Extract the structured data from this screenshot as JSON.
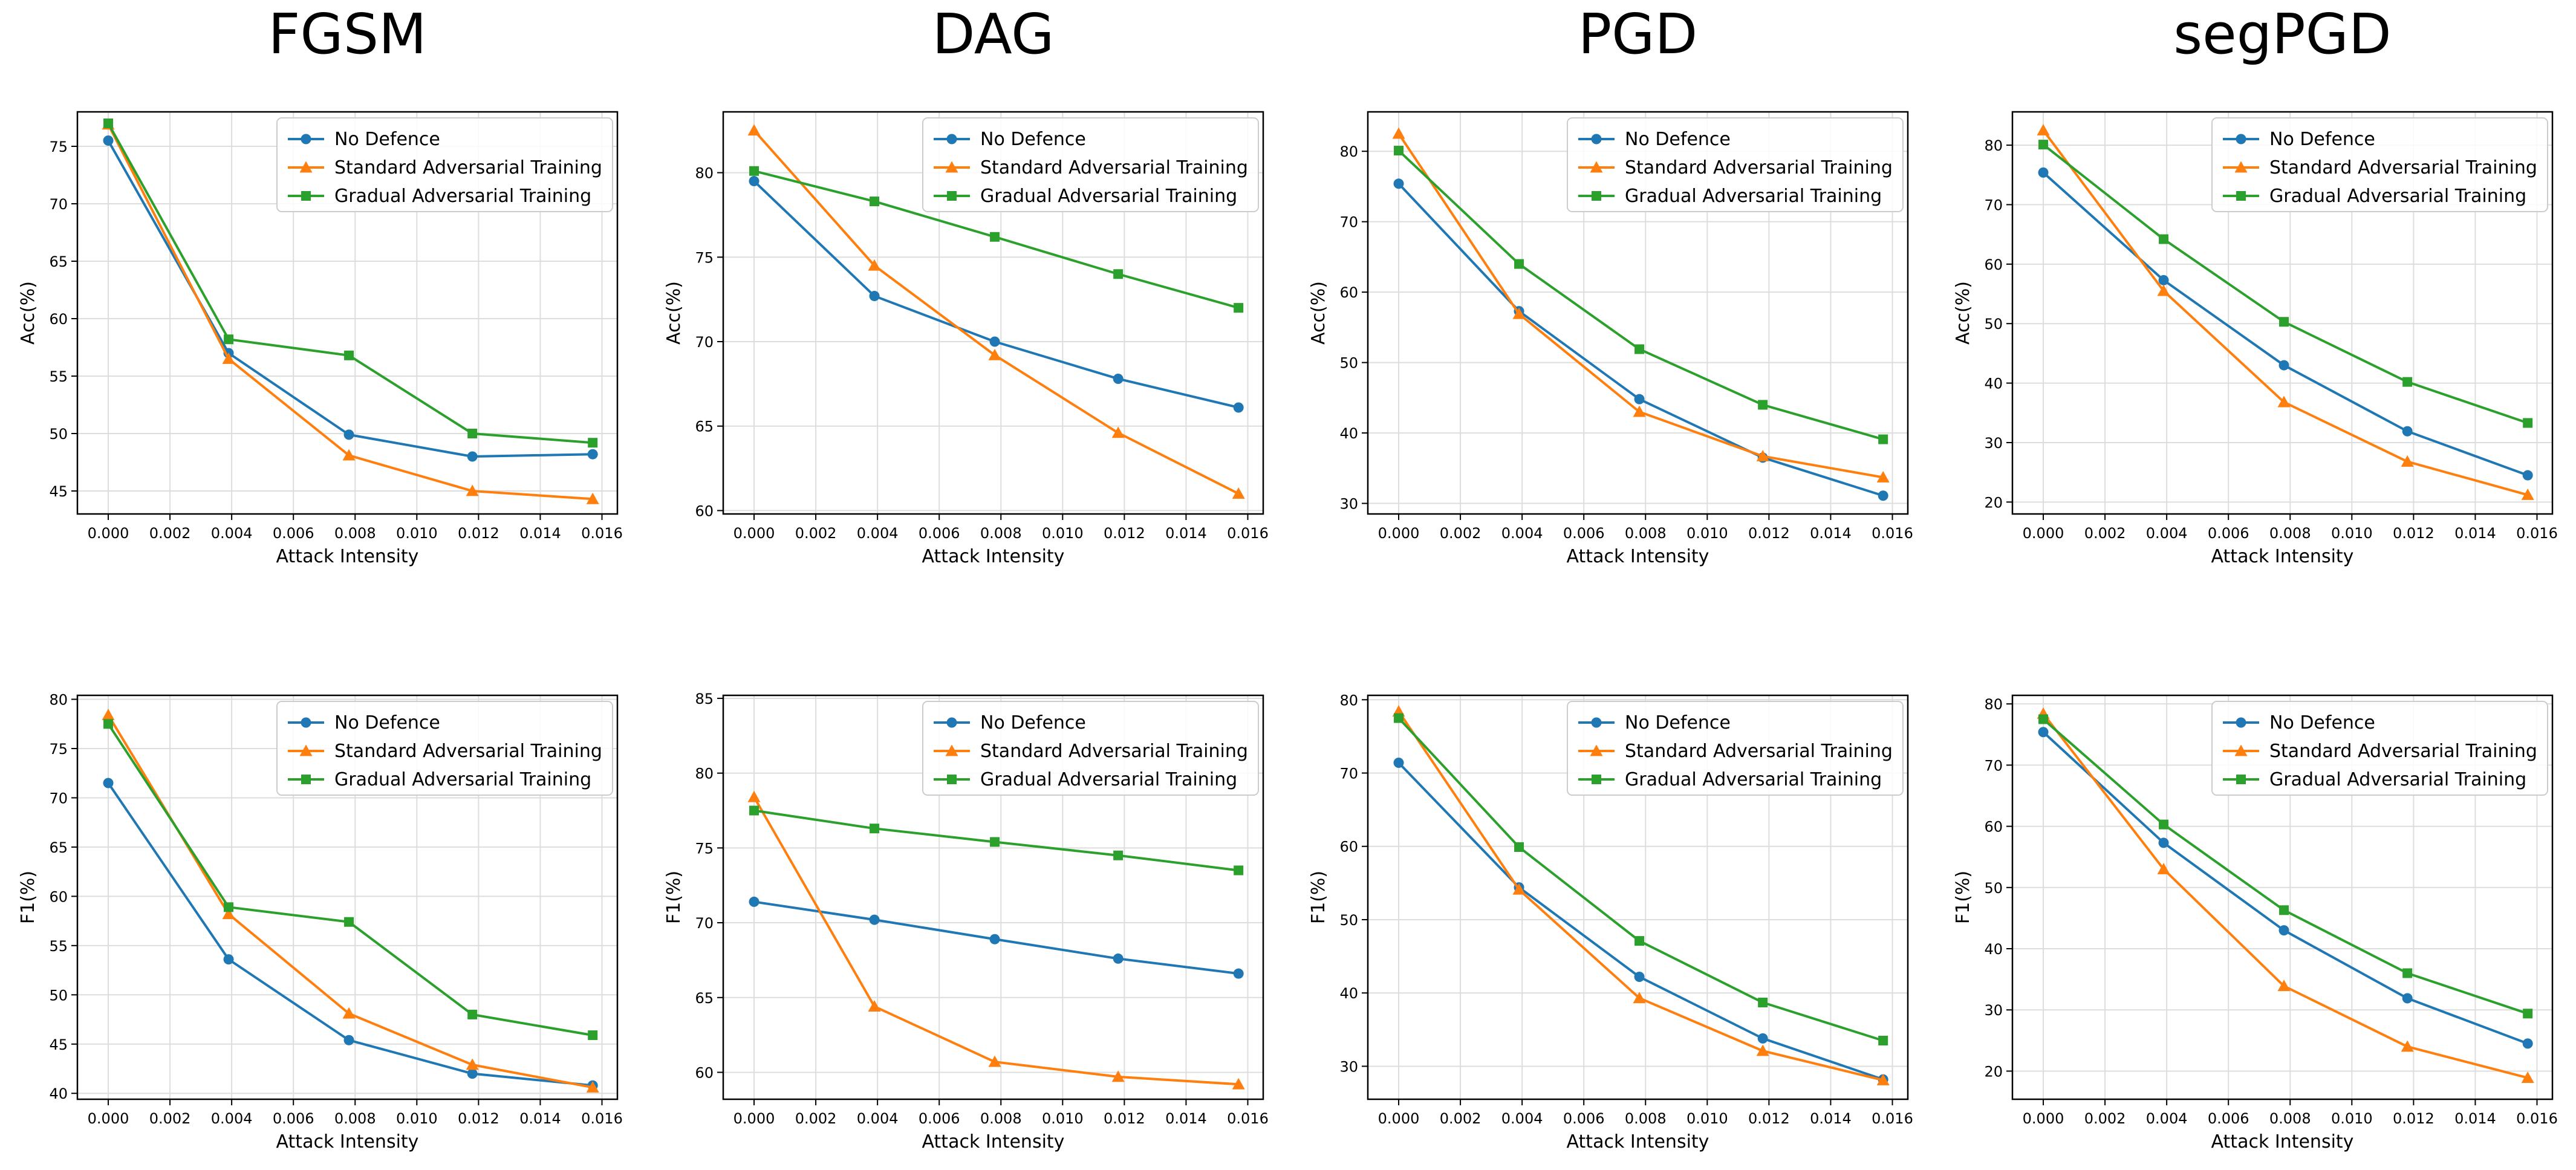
{
  "figure": {
    "column_titles": [
      "FGSM",
      "DAG",
      "PGD",
      "segPGD"
    ]
  },
  "colors": {
    "no_defence": "#1f77b4",
    "standard": "#ff7f0e",
    "gradual": "#2ca02c"
  },
  "chart_data": [
    {
      "type": "line",
      "attack": "FGSM",
      "metric": "Acc",
      "xlabel": "Attack Intensity",
      "ylabel": "Acc(%)",
      "xlim": [
        -0.001,
        0.0165
      ],
      "ylim": [
        43,
        78
      ],
      "xticks": [
        "0.000",
        "0.002",
        "0.004",
        "0.006",
        "0.008",
        "0.010",
        "0.012",
        "0.014",
        "0.016"
      ],
      "yticks": [
        "45",
        "50",
        "55",
        "60",
        "65",
        "70",
        "75"
      ],
      "x": [
        0.0,
        0.0039,
        0.0078,
        0.0118,
        0.0157
      ],
      "legend_position": "top-right",
      "series": [
        {
          "name": "No Defence",
          "marker": "circle",
          "values": [
            75.5,
            57.0,
            49.9,
            48.0,
            48.2
          ]
        },
        {
          "name": "Standard Adversarial Training",
          "marker": "triangle",
          "values": [
            76.9,
            56.5,
            48.1,
            45.0,
            44.3
          ]
        },
        {
          "name": "Gradual Adversarial Training",
          "marker": "square",
          "values": [
            77.0,
            58.2,
            56.8,
            50.0,
            49.2
          ]
        }
      ]
    },
    {
      "type": "line",
      "attack": "DAG",
      "metric": "Acc",
      "xlabel": "Attack Intensity",
      "ylabel": "Acc(%)",
      "xlim": [
        -0.001,
        0.0165
      ],
      "ylim": [
        59.8,
        83.6
      ],
      "xticks": [
        "0.000",
        "0.002",
        "0.004",
        "0.006",
        "0.008",
        "0.010",
        "0.012",
        "0.014",
        "0.016"
      ],
      "yticks": [
        "60",
        "65",
        "70",
        "75",
        "80"
      ],
      "x": [
        0.0,
        0.0039,
        0.0078,
        0.0118,
        0.0157
      ],
      "legend_position": "top-right",
      "series": [
        {
          "name": "No Defence",
          "marker": "circle",
          "values": [
            79.5,
            72.7,
            70.0,
            67.8,
            66.1
          ]
        },
        {
          "name": "Standard Adversarial Training",
          "marker": "triangle",
          "values": [
            82.5,
            74.5,
            69.2,
            64.6,
            61.0
          ]
        },
        {
          "name": "Gradual Adversarial Training",
          "marker": "square",
          "values": [
            80.1,
            78.3,
            76.2,
            74.0,
            72.0
          ]
        }
      ]
    },
    {
      "type": "line",
      "attack": "PGD",
      "metric": "Acc",
      "xlabel": "Attack Intensity",
      "ylabel": "Acc(%)",
      "xlim": [
        -0.001,
        0.0165
      ],
      "ylim": [
        28.5,
        85.6
      ],
      "xticks": [
        "0.000",
        "0.002",
        "0.004",
        "0.006",
        "0.008",
        "0.010",
        "0.012",
        "0.014",
        "0.016"
      ],
      "yticks": [
        "30",
        "40",
        "50",
        "60",
        "70",
        "80"
      ],
      "x": [
        0.0,
        0.0039,
        0.0078,
        0.0118,
        0.0157
      ],
      "legend_position": "top-right",
      "series": [
        {
          "name": "No Defence",
          "marker": "circle",
          "values": [
            75.4,
            57.3,
            44.8,
            36.5,
            31.1
          ]
        },
        {
          "name": "Standard Adversarial Training",
          "marker": "triangle",
          "values": [
            82.5,
            56.9,
            43.0,
            36.7,
            33.7
          ]
        },
        {
          "name": "Gradual Adversarial Training",
          "marker": "square",
          "values": [
            80.1,
            64.0,
            51.9,
            44.0,
            39.1
          ]
        }
      ]
    },
    {
      "type": "line",
      "attack": "segPGD",
      "metric": "Acc",
      "xlabel": "Attack Intensity",
      "ylabel": "Acc(%)",
      "xlim": [
        -0.001,
        0.0165
      ],
      "ylim": [
        18.0,
        85.6
      ],
      "xticks": [
        "0.000",
        "0.002",
        "0.004",
        "0.006",
        "0.008",
        "0.010",
        "0.012",
        "0.014",
        "0.016"
      ],
      "yticks": [
        "20",
        "30",
        "40",
        "50",
        "60",
        "70",
        "80"
      ],
      "x": [
        0.0,
        0.0039,
        0.0078,
        0.0118,
        0.0157
      ],
      "legend_position": "top-right",
      "series": [
        {
          "name": "No Defence",
          "marker": "circle",
          "values": [
            75.4,
            57.3,
            43.0,
            31.9,
            24.5
          ]
        },
        {
          "name": "Standard Adversarial Training",
          "marker": "triangle",
          "values": [
            82.5,
            55.5,
            36.8,
            26.8,
            21.2
          ]
        },
        {
          "name": "Gradual Adversarial Training",
          "marker": "square",
          "values": [
            80.1,
            64.2,
            50.3,
            40.2,
            33.3
          ]
        }
      ]
    },
    {
      "type": "line",
      "attack": "FGSM",
      "metric": "F1",
      "xlabel": "Attack Intensity",
      "ylabel": "F1(%)",
      "xlim": [
        -0.001,
        0.0165
      ],
      "ylim": [
        39.4,
        80.4
      ],
      "xticks": [
        "0.000",
        "0.002",
        "0.004",
        "0.006",
        "0.008",
        "0.010",
        "0.012",
        "0.014",
        "0.016"
      ],
      "yticks": [
        "40",
        "45",
        "50",
        "55",
        "60",
        "65",
        "70",
        "75",
        "80"
      ],
      "x": [
        0.0,
        0.0039,
        0.0078,
        0.0118,
        0.0157
      ],
      "legend_position": "top-right",
      "series": [
        {
          "name": "No Defence",
          "marker": "circle",
          "values": [
            71.5,
            53.6,
            45.4,
            42.0,
            40.8
          ]
        },
        {
          "name": "Standard Adversarial Training",
          "marker": "triangle",
          "values": [
            78.4,
            58.2,
            48.1,
            42.9,
            40.6
          ]
        },
        {
          "name": "Gradual Adversarial Training",
          "marker": "square",
          "values": [
            77.5,
            58.9,
            57.4,
            48.0,
            45.9
          ]
        }
      ]
    },
    {
      "type": "line",
      "attack": "DAG",
      "metric": "F1",
      "xlabel": "Attack Intensity",
      "ylabel": "F1(%)",
      "xlim": [
        -0.001,
        0.0165
      ],
      "ylim": [
        58.2,
        85.2
      ],
      "xticks": [
        "0.000",
        "0.002",
        "0.004",
        "0.006",
        "0.008",
        "0.010",
        "0.012",
        "0.014",
        "0.016"
      ],
      "yticks": [
        "60",
        "65",
        "70",
        "75",
        "80",
        "85"
      ],
      "x": [
        0.0,
        0.0039,
        0.0078,
        0.0118,
        0.0157
      ],
      "legend_position": "top-right",
      "series": [
        {
          "name": "No Defence",
          "marker": "circle",
          "values": [
            71.4,
            70.2,
            68.9,
            67.6,
            66.6
          ]
        },
        {
          "name": "Standard Adversarial Training",
          "marker": "triangle",
          "values": [
            78.4,
            64.4,
            60.7,
            59.7,
            59.2
          ]
        },
        {
          "name": "Gradual Adversarial Training",
          "marker": "square",
          "values": [
            77.5,
            76.3,
            75.4,
            74.5,
            73.5
          ]
        }
      ]
    },
    {
      "type": "line",
      "attack": "PGD",
      "metric": "F1",
      "xlabel": "Attack Intensity",
      "ylabel": "F1(%)",
      "xlim": [
        -0.001,
        0.0165
      ],
      "ylim": [
        25.5,
        80.6
      ],
      "xticks": [
        "0.000",
        "0.002",
        "0.004",
        "0.006",
        "0.008",
        "0.010",
        "0.012",
        "0.014",
        "0.016"
      ],
      "yticks": [
        "30",
        "40",
        "50",
        "60",
        "70",
        "80"
      ],
      "x": [
        0.0,
        0.0039,
        0.0078,
        0.0118,
        0.0157
      ],
      "legend_position": "top-right",
      "series": [
        {
          "name": "No Defence",
          "marker": "circle",
          "values": [
            71.4,
            54.4,
            42.2,
            33.8,
            28.2
          ]
        },
        {
          "name": "Standard Adversarial Training",
          "marker": "triangle",
          "values": [
            78.4,
            54.1,
            39.3,
            32.1,
            28.1
          ]
        },
        {
          "name": "Gradual Adversarial Training",
          "marker": "square",
          "values": [
            77.5,
            59.9,
            47.1,
            38.7,
            33.5
          ]
        }
      ]
    },
    {
      "type": "line",
      "attack": "segPGD",
      "metric": "F1",
      "xlabel": "Attack Intensity",
      "ylabel": "F1(%)",
      "xlim": [
        -0.001,
        0.0165
      ],
      "ylim": [
        15.4,
        81.4
      ],
      "xticks": [
        "0.000",
        "0.002",
        "0.004",
        "0.006",
        "0.008",
        "0.010",
        "0.012",
        "0.014",
        "0.016"
      ],
      "yticks": [
        "20",
        "30",
        "40",
        "50",
        "60",
        "70",
        "80"
      ],
      "x": [
        0.0,
        0.0039,
        0.0078,
        0.0118,
        0.0157
      ],
      "legend_position": "top-right",
      "series": [
        {
          "name": "No Defence",
          "marker": "circle",
          "values": [
            75.4,
            57.3,
            43.0,
            31.9,
            24.5
          ]
        },
        {
          "name": "Standard Adversarial Training",
          "marker": "triangle",
          "values": [
            78.4,
            53.0,
            33.9,
            24.0,
            18.9
          ]
        },
        {
          "name": "Gradual Adversarial Training",
          "marker": "square",
          "values": [
            77.5,
            60.3,
            46.3,
            36.0,
            29.4
          ]
        }
      ]
    }
  ]
}
